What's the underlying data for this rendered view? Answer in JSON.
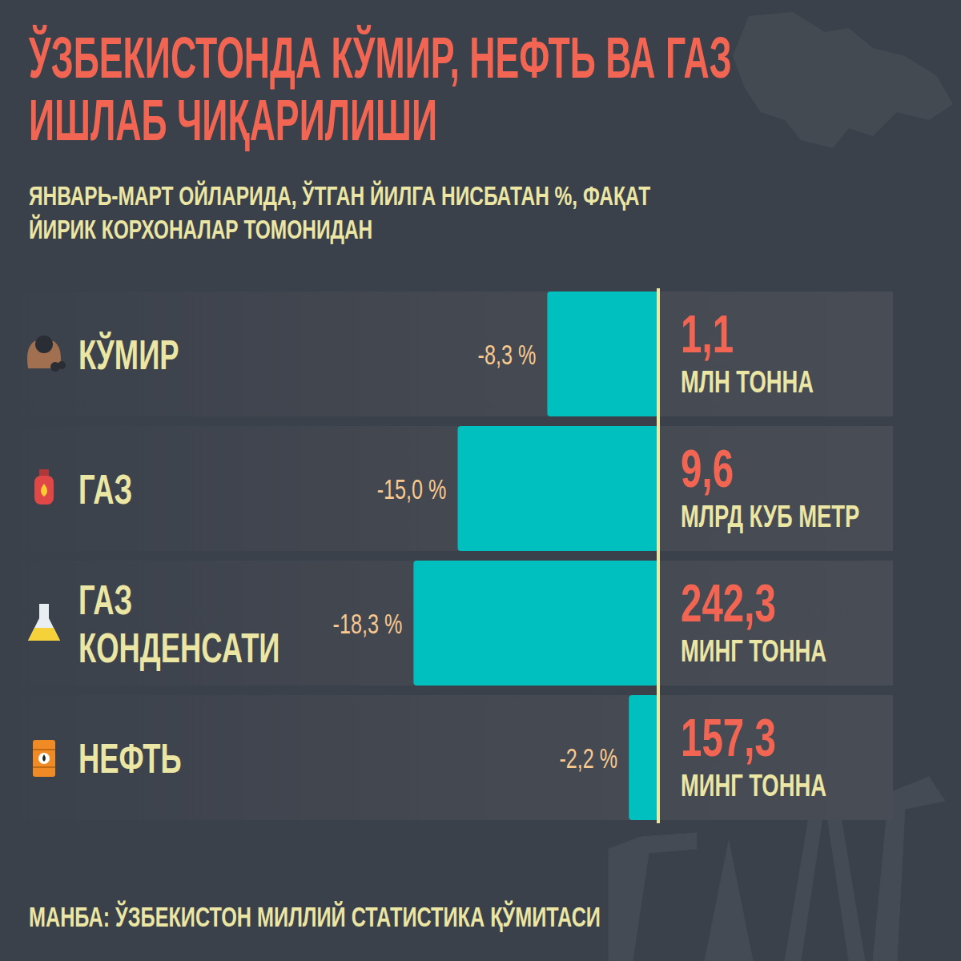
{
  "chart_data": {
    "type": "bar",
    "orientation": "horizontal",
    "title": "ЎЗБЕКИСТОНДА КЎМИР, НЕФТЬ ВА ГАЗ ИШЛАБ ЧИҚАРИЛИШИ",
    "subtitle": "ЯНВАРЬ-МАРТ ОЙЛАРИДА, ЎТГАН ЙИЛГА НИСБАТАН %, ФАҚАТ ЙИРИК КОРХОНАЛАР ТОМОНИДАН",
    "categories": [
      "КЎМИР",
      "ГАЗ",
      "ГАЗ КОНДЕНСАТИ",
      "НЕФТЬ"
    ],
    "values": [
      -8.3,
      -15.0,
      -18.3,
      -2.2
    ],
    "value_labels": [
      "-8,3 %",
      "-15,0 %",
      "-18,3 %",
      "-2,2 %"
    ],
    "amounts": [
      "1,1",
      "9,6",
      "242,3",
      "157,3"
    ],
    "amount_units": [
      "МЛН ТОННА",
      "МЛРД КУБ МЕТР",
      "МИНГ ТОННА",
      "МИНГ ТОННА"
    ],
    "color": "#00bfbf",
    "xlim": [
      -20,
      0
    ],
    "grid": false,
    "data_labels": true,
    "tick_labels": false,
    "source": "МАНБА: ЎЗБЕКИСТОН МИЛЛИЙ СТАТИСТИКА ҚЎМИТАСИ"
  }
}
